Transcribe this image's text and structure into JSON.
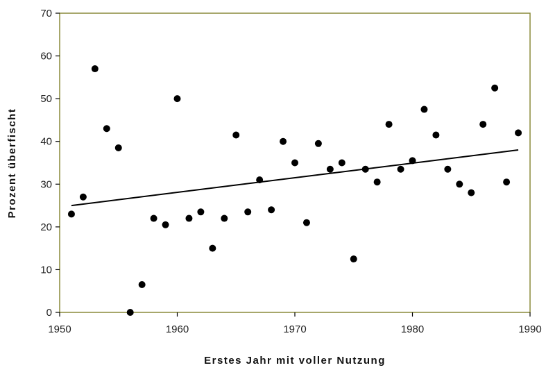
{
  "chart_data": {
    "type": "scatter",
    "title": "",
    "xlabel": "Erstes Jahr mit voller Nutzung",
    "ylabel": "Prozent überfischt",
    "xlim": [
      1950,
      1990
    ],
    "ylim": [
      0,
      70
    ],
    "xticks": [
      "1950",
      "1960",
      "1970",
      "1980",
      "1990"
    ],
    "yticks": [
      "0",
      "10",
      "20",
      "30",
      "40",
      "50",
      "60",
      "70"
    ],
    "grid": false,
    "legend": "none",
    "colors": {
      "plot_border": "#8a8a3a",
      "points": "#000000",
      "trend": "#000000"
    },
    "points": [
      {
        "x": 1951,
        "y": 23
      },
      {
        "x": 1952,
        "y": 27
      },
      {
        "x": 1953,
        "y": 57
      },
      {
        "x": 1954,
        "y": 43
      },
      {
        "x": 1955,
        "y": 38.5
      },
      {
        "x": 1956,
        "y": 0
      },
      {
        "x": 1957,
        "y": 6.5
      },
      {
        "x": 1958,
        "y": 22
      },
      {
        "x": 1959,
        "y": 20.5
      },
      {
        "x": 1960,
        "y": 50
      },
      {
        "x": 1961,
        "y": 22
      },
      {
        "x": 1962,
        "y": 23.5
      },
      {
        "x": 1963,
        "y": 15
      },
      {
        "x": 1964,
        "y": 22
      },
      {
        "x": 1965,
        "y": 41.5
      },
      {
        "x": 1966,
        "y": 23.5
      },
      {
        "x": 1967,
        "y": 31
      },
      {
        "x": 1968,
        "y": 24
      },
      {
        "x": 1969,
        "y": 40
      },
      {
        "x": 1970,
        "y": 35
      },
      {
        "x": 1971,
        "y": 21
      },
      {
        "x": 1972,
        "y": 39.5
      },
      {
        "x": 1973,
        "y": 33.5
      },
      {
        "x": 1974,
        "y": 35
      },
      {
        "x": 1975,
        "y": 12.5
      },
      {
        "x": 1976,
        "y": 33.5
      },
      {
        "x": 1977,
        "y": 30.5
      },
      {
        "x": 1978,
        "y": 44
      },
      {
        "x": 1979,
        "y": 33.5
      },
      {
        "x": 1980,
        "y": 35.5
      },
      {
        "x": 1981,
        "y": 47.5
      },
      {
        "x": 1982,
        "y": 41.5
      },
      {
        "x": 1983,
        "y": 33.5
      },
      {
        "x": 1984,
        "y": 30
      },
      {
        "x": 1985,
        "y": 28
      },
      {
        "x": 1986,
        "y": 44
      },
      {
        "x": 1987,
        "y": 52.5
      },
      {
        "x": 1988,
        "y": 30.5
      },
      {
        "x": 1989,
        "y": 42
      }
    ],
    "trendline": {
      "x": [
        1951,
        1989
      ],
      "y": [
        25,
        38
      ]
    }
  }
}
